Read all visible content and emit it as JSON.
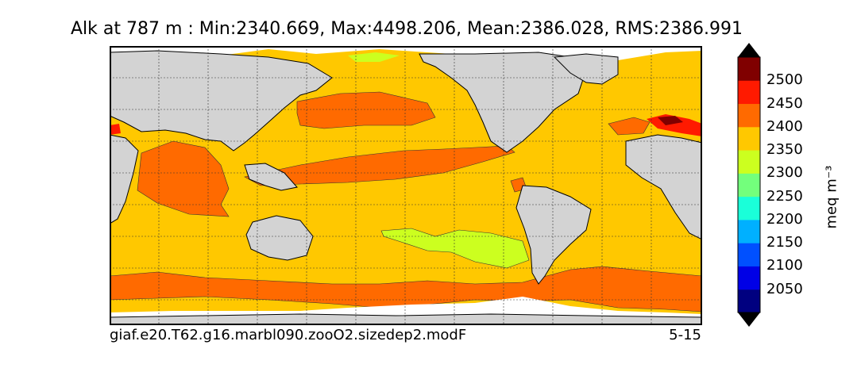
{
  "chart_data": {
    "type": "heatmap",
    "title": "Alk at 787 m : Min:2340.669, Max:4498.206, Mean:2386.028, RMS:2386.991",
    "variable": "Alk",
    "depth": "787 m",
    "stats": {
      "min": 2340.669,
      "max": 4498.206,
      "mean": 2386.028,
      "rms": 2386.991
    },
    "run_label": "giaf.e20.T62.g16.marbl090.zooO2.sizedep2.modF",
    "period_label": "5-15",
    "colorbar": {
      "label": "meq m⁻³",
      "levels": [
        2000,
        2050,
        2100,
        2150,
        2200,
        2250,
        2300,
        2350,
        2400,
        2450,
        2500,
        2550
      ],
      "tick_labels": [
        "2050",
        "2100",
        "2150",
        "2200",
        "2250",
        "2300",
        "2350",
        "2400",
        "2450",
        "2500"
      ],
      "colors": [
        "#000080",
        "#0000e6",
        "#0050ff",
        "#00b0ff",
        "#1affd9",
        "#73ff7c",
        "#ccff1f",
        "#ffc800",
        "#ff6a00",
        "#ff1a00",
        "#800000"
      ],
      "extend": "both",
      "under_color": "#000000",
      "over_color": "#000000"
    },
    "land_color": "#d3d3d3",
    "missing_color": "#ffffff",
    "grid": true,
    "projection": "cylindrical",
    "lon_range": [
      20,
      380
    ],
    "lat_range": [
      -80,
      90
    ]
  }
}
